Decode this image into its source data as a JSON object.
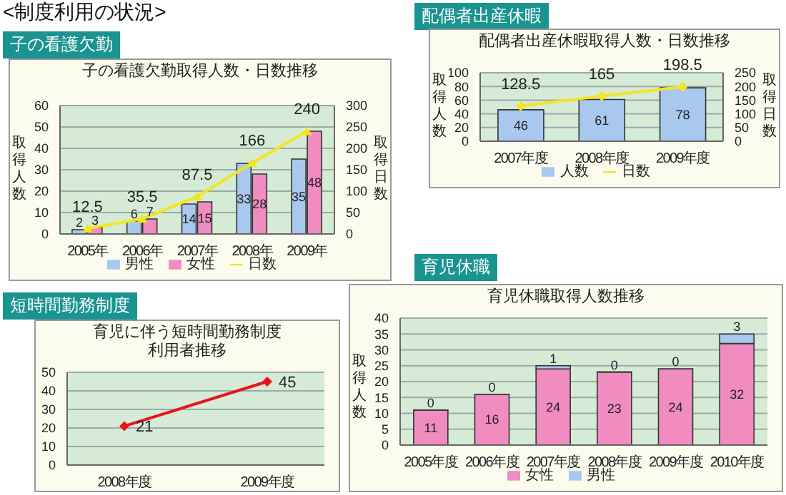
{
  "chart_data": [
    {
      "type": "bar",
      "title": "子の看護欠勤",
      "subtitle": "子の看護欠勤取得人数・日数推移",
      "annotations": [
        "<制度利用の状況>"
      ],
      "ylabel": "取得人数",
      "y2label": "取得日数",
      "categories": [
        "2005年",
        "2006年",
        "2007年",
        "2008年",
        "2009年"
      ],
      "series": [
        {
          "name": "男性",
          "color": "#a8c8ee",
          "values": [
            2,
            6,
            14,
            33,
            35
          ]
        },
        {
          "name": "女性",
          "color": "#f08cc0",
          "values": [
            3,
            7,
            15,
            28,
            48
          ]
        },
        {
          "name": "日数",
          "type": "line",
          "axis": "y2",
          "marker": "triangle",
          "color": "#f2e622",
          "values": [
            12.5,
            35.5,
            87.5,
            166,
            240
          ]
        }
      ],
      "ylim": [
        0,
        60
      ],
      "yticks": [
        0,
        10,
        20,
        30,
        40,
        50,
        60
      ],
      "y2lim": [
        0,
        300
      ],
      "y2ticks": [
        0,
        50,
        100,
        150,
        200,
        250,
        300
      ],
      "grid": "y",
      "legend": "bottom",
      "data_labels": true
    },
    {
      "type": "bar",
      "title": "配偶者出産休暇",
      "subtitle": "配偶者出産休暇取得人数・日数推移",
      "ylabel": "取得人数",
      "y2label": "取得日数",
      "categories": [
        "2007年度",
        "2008年度",
        "2009年度"
      ],
      "series": [
        {
          "name": "人数",
          "color": "#a8c8ee",
          "values": [
            46,
            61,
            78
          ]
        },
        {
          "name": "日数",
          "type": "line",
          "axis": "y2",
          "marker": "diamond",
          "color": "#f2e622",
          "values": [
            128.5,
            165,
            198.5
          ]
        }
      ],
      "ylim": [
        0,
        100
      ],
      "yticks": [
        0,
        20,
        40,
        60,
        80,
        100
      ],
      "y2lim": [
        0,
        250
      ],
      "y2ticks": [
        0,
        50,
        100,
        150,
        200,
        250
      ],
      "grid": "y",
      "legend": "bottom",
      "data_labels": true
    },
    {
      "type": "line",
      "title": "短時間勤務制度",
      "subtitle": "育児に伴う短時間勤務制度利用者推移",
      "categories": [
        "2008年度",
        "2009年度"
      ],
      "series": [
        {
          "color": "#e8141c",
          "marker": "diamond",
          "values": [
            21,
            45
          ]
        }
      ],
      "ylim": [
        0,
        50
      ],
      "yticks": [
        0,
        10,
        20,
        30,
        40,
        50
      ],
      "grid": "y",
      "data_labels": true
    },
    {
      "type": "bar",
      "title": "育児休職",
      "subtitle": "育児休職取得人数推移",
      "ylabel": "取得人数",
      "stacked": true,
      "categories": [
        "2005年度",
        "2006年度",
        "2007年度",
        "2008年度",
        "2009年度",
        "2010年度"
      ],
      "series": [
        {
          "name": "女性",
          "color": "#f08cc0",
          "values": [
            11,
            16,
            24,
            23,
            24,
            32
          ]
        },
        {
          "name": "男性",
          "color": "#a8c8ee",
          "values": [
            0,
            0,
            1,
            0,
            0,
            3
          ]
        }
      ],
      "ylim": [
        0,
        40
      ],
      "yticks": [
        0,
        5,
        10,
        15,
        20,
        25,
        30,
        35,
        40
      ],
      "grid": "y",
      "legend": "bottom",
      "data_labels": true
    }
  ]
}
